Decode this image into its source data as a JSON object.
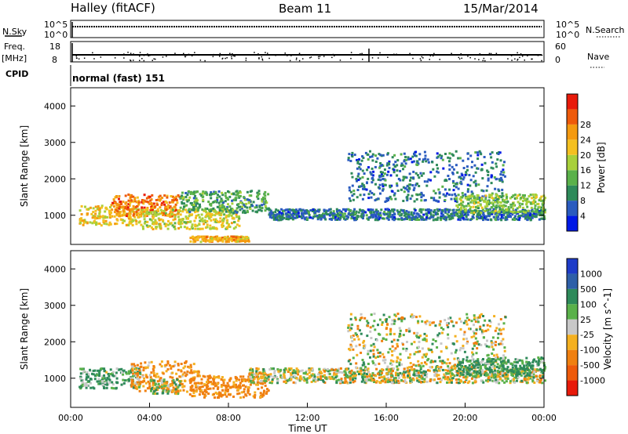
{
  "header": {
    "station": "Halley (fitACF)",
    "beam": "Beam 11",
    "date": "15/Mar/2014"
  },
  "top_panels": {
    "nsky_label": "N.Sky",
    "nsearch_label": "N.Search",
    "nsky_ticks": [
      "10^5",
      "10^0"
    ],
    "nsearch_ticks": [
      "10^5",
      "10^0"
    ],
    "freq_label": "Freq.",
    "freq_unit": "[MHz]",
    "freq_ticks": [
      "18",
      "8"
    ],
    "nave_label": "Nave",
    "nave_ticks": [
      "60",
      "0"
    ],
    "cpid_label": "CPID",
    "cpid_value": "normal (fast) 151"
  },
  "chart_data": [
    {
      "type": "heatmap",
      "name": "power",
      "title": "",
      "ylabel": "Slant Range [km]",
      "xlabel": "",
      "xlim": [
        "00:00",
        "24:00"
      ],
      "ylim": [
        200,
        4500
      ],
      "yticks": [
        "1000",
        "2000",
        "3000",
        "4000"
      ],
      "colorbar": {
        "label": "Power [dB]",
        "ticks": [
          "4",
          "8",
          "12",
          "16",
          "20",
          "24",
          "28"
        ],
        "colors": [
          "#0019e6",
          "#2a5bbf",
          "#2e8a5a",
          "#5ab14a",
          "#a8d03a",
          "#f4c020",
          "#f49a10",
          "#ee5a0a",
          "#e81a0a"
        ]
      },
      "regions": [
        {
          "t": [
            0.4,
            3.6
          ],
          "r": [
            750,
            1300
          ],
          "db": 20
        },
        {
          "t": [
            2.0,
            5.5
          ],
          "r": [
            1000,
            1600
          ],
          "db": 26
        },
        {
          "t": [
            3.6,
            8.5
          ],
          "r": [
            650,
            1200
          ],
          "db": 18
        },
        {
          "t": [
            6.0,
            9.0
          ],
          "r": [
            300,
            450
          ],
          "db": 22
        },
        {
          "t": [
            5.5,
            10.0
          ],
          "r": [
            1100,
            1700
          ],
          "db": 10
        },
        {
          "t": [
            10.0,
            24.0
          ],
          "r": [
            900,
            1200
          ],
          "db": 6
        },
        {
          "t": [
            14.0,
            22.0
          ],
          "r": [
            1400,
            2800
          ],
          "db": 6
        },
        {
          "t": [
            19.5,
            24.0
          ],
          "r": [
            1100,
            1600
          ],
          "db": 14
        }
      ]
    },
    {
      "type": "heatmap",
      "name": "velocity",
      "title": "",
      "ylabel": "Slant Range [km]",
      "xlabel": "Time UT",
      "xlim": [
        "00:00",
        "24:00"
      ],
      "ylim": [
        200,
        4500
      ],
      "yticks": [
        "1000",
        "2000",
        "3000",
        "4000"
      ],
      "xticks": [
        "00:00",
        "04:00",
        "08:00",
        "12:00",
        "16:00",
        "20:00",
        "00:00"
      ],
      "colorbar": {
        "label": "Velocity [m s^-1]",
        "ticks": [
          "1000",
          "500",
          "100",
          "25",
          "-25",
          "-100",
          "-500",
          "-1000"
        ],
        "colors": [
          "#1e3cc8",
          "#2e5fa8",
          "#2e8a5a",
          "#5ab14a",
          "#c8c8c8",
          "#f4b020",
          "#f08010",
          "#ee5a0a",
          "#e81a0a"
        ]
      },
      "regions": [
        {
          "t": [
            0.4,
            3.5
          ],
          "r": [
            750,
            1300
          ],
          "v": 120
        },
        {
          "t": [
            3.0,
            6.5
          ],
          "r": [
            650,
            1500
          ],
          "v": -150
        },
        {
          "t": [
            4.0,
            5.5
          ],
          "r": [
            600,
            1000
          ],
          "v": 0
        },
        {
          "t": [
            6.0,
            10.0
          ],
          "r": [
            500,
            1100
          ],
          "v": -200
        },
        {
          "t": [
            9.0,
            24.0
          ],
          "r": [
            900,
            1300
          ],
          "v": 0
        },
        {
          "t": [
            14.0,
            22.0
          ],
          "r": [
            1300,
            2800
          ],
          "v": 0
        },
        {
          "t": [
            19.5,
            24.0
          ],
          "r": [
            1100,
            1600
          ],
          "v": 150
        }
      ]
    }
  ]
}
